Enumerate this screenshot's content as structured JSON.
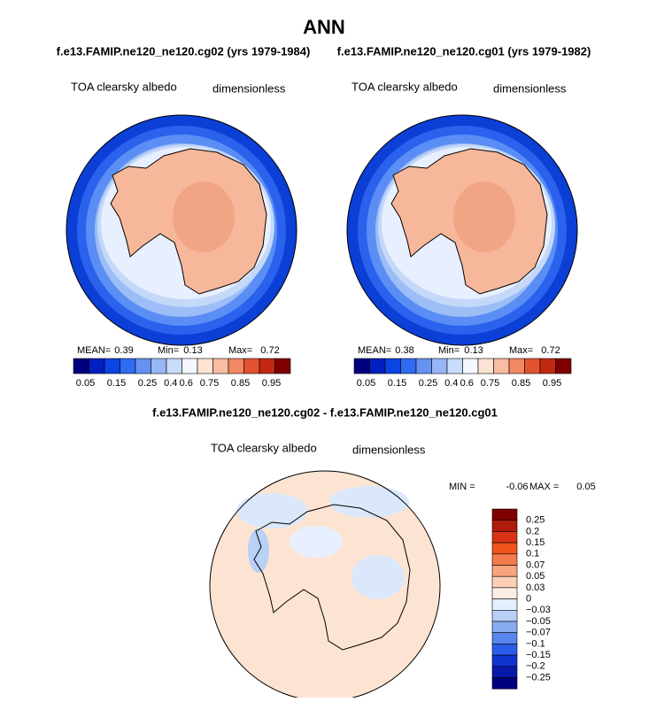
{
  "title": "ANN",
  "panels": [
    {
      "subtitle": "f.e13.FAMIP.ne120_ne120.cg02 (yrs 1979-1984)",
      "variable": "TOA clearsky albedo",
      "units": "dimensionless",
      "stats": [
        {
          "label": "MEAN=",
          "value": "0.39"
        },
        {
          "label": "Min=",
          "value": "0.13"
        },
        {
          "label": "Max=",
          "value": "0.72"
        }
      ],
      "colorbar_labels": [
        "0.05",
        "0.15",
        "0.25",
        "0.4",
        "0.6",
        "0.75",
        "0.85",
        "0.95"
      ]
    },
    {
      "subtitle": "f.e13.FAMIP.ne120_ne120.cg01 (yrs 1979-1982)",
      "variable": "TOA clearsky albedo",
      "units": "dimensionless",
      "stats": [
        {
          "label": "MEAN=",
          "value": "0.38"
        },
        {
          "label": "Min=",
          "value": "0.13"
        },
        {
          "label": "Max=",
          "value": "0.72"
        }
      ],
      "colorbar_labels": [
        "0.05",
        "0.15",
        "0.25",
        "0.4",
        "0.6",
        "0.75",
        "0.85",
        "0.95"
      ]
    }
  ],
  "difference": {
    "title": "f.e13.FAMIP.ne120_ne120.cg02 - f.e13.FAMIP.ne120_ne120.cg01",
    "variable": "TOA clearsky albedo",
    "units": "dimensionless",
    "stats": [
      {
        "label": "MIN =",
        "value": "-0.06"
      },
      {
        "label": "MAX =",
        "value": "0.05"
      }
    ],
    "colorbar_labels": [
      "0.25",
      "0.2",
      "0.15",
      "0.1",
      "0.07",
      "0.05",
      "0.03",
      "0",
      "−0.03",
      "−0.05",
      "−0.07",
      "−0.1",
      "−0.15",
      "−0.2",
      "−0.25"
    ]
  }
}
